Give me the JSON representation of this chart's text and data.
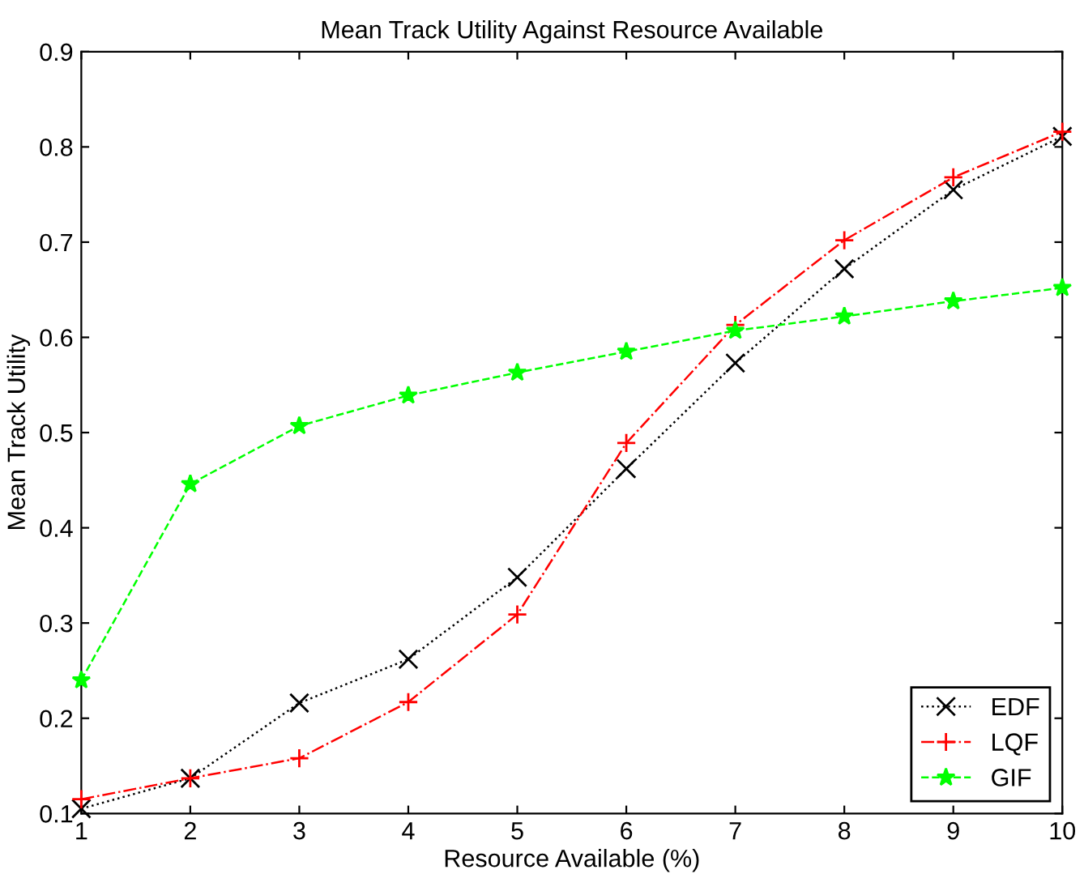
{
  "chart_data": {
    "type": "line",
    "title": "Mean Track Utility Against Resource Available",
    "xlabel": "Resource Available (%)",
    "ylabel": "Mean Track Utility",
    "x": [
      1,
      2,
      3,
      4,
      5,
      6,
      7,
      8,
      9,
      10
    ],
    "series": [
      {
        "name": "EDF",
        "color": "#000000",
        "marker": "cross",
        "line_style": "dotted",
        "values": [
          0.105,
          0.137,
          0.216,
          0.262,
          0.348,
          0.462,
          0.573,
          0.672,
          0.755,
          0.811
        ]
      },
      {
        "name": "LQF",
        "color": "#ff0000",
        "marker": "plus",
        "line_style": "dashdot",
        "values": [
          0.115,
          0.137,
          0.158,
          0.217,
          0.309,
          0.489,
          0.613,
          0.702,
          0.768,
          0.816
        ]
      },
      {
        "name": "GIF",
        "color": "#00ff00",
        "marker": "star",
        "line_style": "dashed",
        "values": [
          0.24,
          0.446,
          0.507,
          0.539,
          0.563,
          0.585,
          0.607,
          0.622,
          0.638,
          0.652
        ]
      }
    ],
    "xlim": [
      1,
      10
    ],
    "ylim": [
      0.1,
      0.9
    ],
    "xticks": [
      1,
      2,
      3,
      4,
      5,
      6,
      7,
      8,
      9,
      10
    ],
    "yticks": [
      0.1,
      0.2,
      0.3,
      0.4,
      0.5,
      0.6,
      0.7,
      0.8,
      0.9
    ],
    "grid": false,
    "legend": "bottom right"
  }
}
